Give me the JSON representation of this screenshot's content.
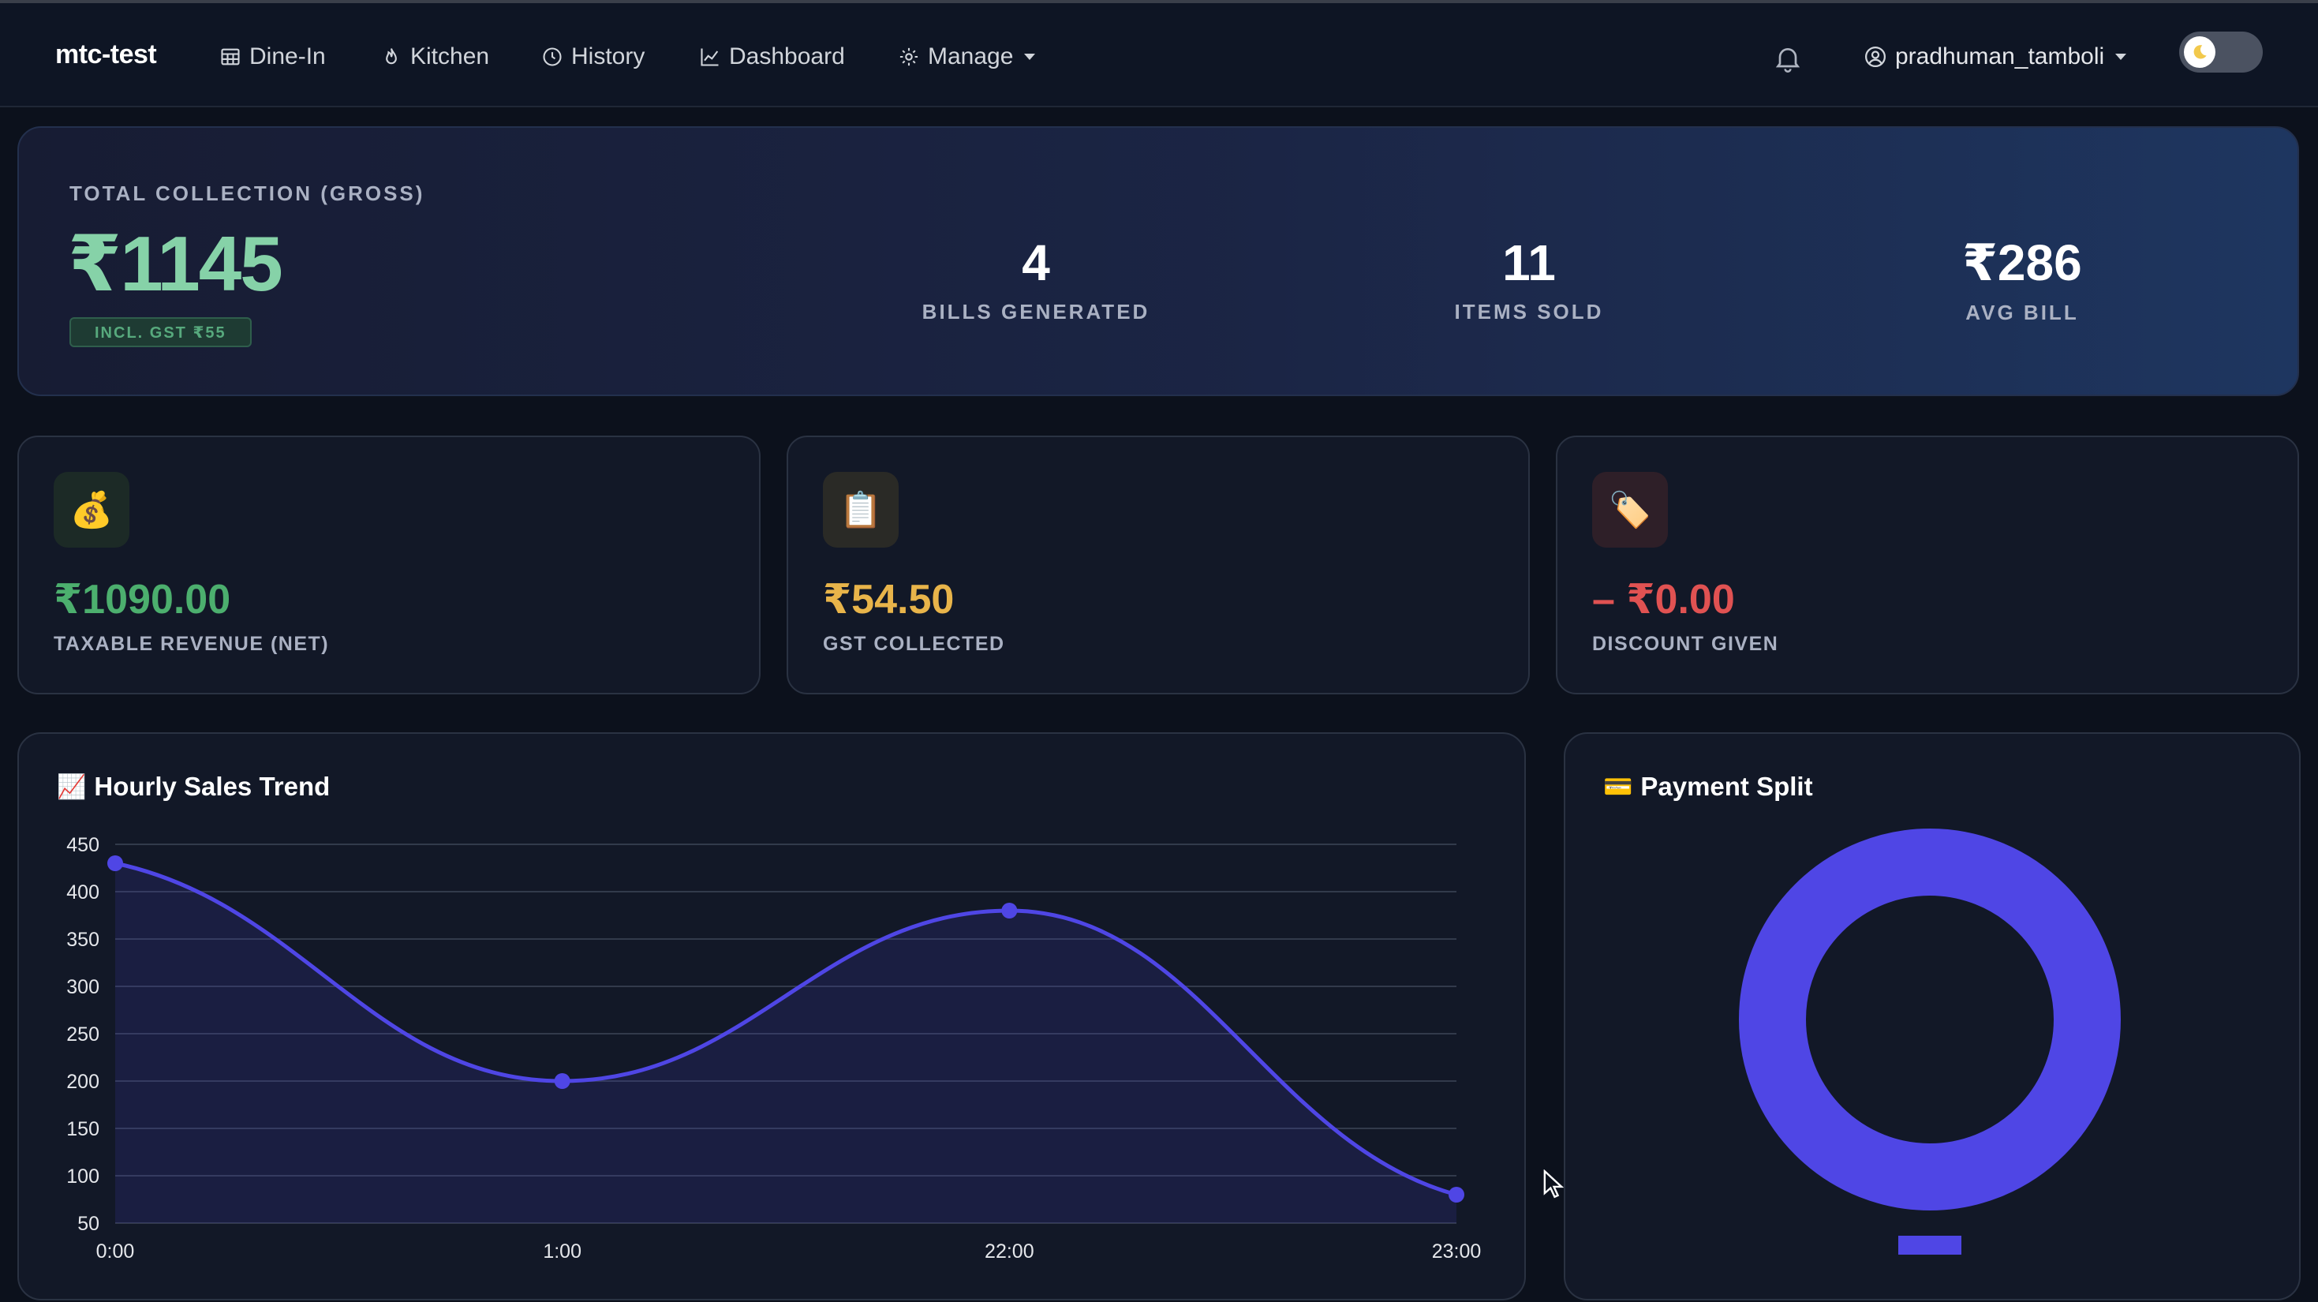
{
  "navbar": {
    "brand": "mtc-test",
    "items": [
      {
        "label": "Dine-In",
        "icon": "table-icon"
      },
      {
        "label": "Kitchen",
        "icon": "fire-icon"
      },
      {
        "label": "History",
        "icon": "clock-icon"
      },
      {
        "label": "Dashboard",
        "icon": "chart-icon"
      },
      {
        "label": "Manage",
        "icon": "gear-icon",
        "dropdown": true
      }
    ],
    "username": "pradhuman_tamboli",
    "theme_toggle_icon": "moon-icon"
  },
  "hero": {
    "label": "TOTAL COLLECTION (GROSS)",
    "amount": "₹1145",
    "badge": "INCL. GST ₹55",
    "stats": [
      {
        "value": "4",
        "label": "BILLS GENERATED"
      },
      {
        "value": "11",
        "label": "ITEMS SOLD"
      },
      {
        "value": "₹286",
        "label": "AVG BILL"
      }
    ]
  },
  "cards": [
    {
      "icon": "money-bag-icon",
      "emoji": "💰",
      "value": "₹1090.00",
      "label": "TAXABLE REVENUE (NET)",
      "color": "#4caf6e",
      "icon_bg": "#1c2a26"
    },
    {
      "icon": "clipboard-icon",
      "emoji": "📋",
      "value": "₹54.50",
      "label": "GST COLLECTED",
      "color": "#e8b44a",
      "icon_bg": "#2a2a26"
    },
    {
      "icon": "tag-icon",
      "emoji": "🏷️",
      "value": "– ₹0.00",
      "label": "DISCOUNT GIVEN",
      "color": "#e05252",
      "icon_bg": "#2e1f28"
    }
  ],
  "panels": {
    "sales": {
      "emoji": "📈",
      "title": "Hourly Sales Trend"
    },
    "payment": {
      "emoji": "💳",
      "title": "Payment Split"
    }
  },
  "chart_data": [
    {
      "type": "area",
      "title": "Hourly Sales Trend",
      "categories": [
        "0:00",
        "1:00",
        "22:00",
        "23:00"
      ],
      "values": [
        430,
        200,
        380,
        80
      ],
      "ylim": [
        50,
        450
      ],
      "yticks": [
        450,
        400,
        350,
        300,
        250,
        200,
        150,
        100,
        50
      ],
      "grid": true,
      "color": "#4f46e5"
    },
    {
      "type": "pie",
      "title": "Payment Split",
      "variant": "doughnut",
      "values": [
        100
      ],
      "colors": [
        "#4f46e5"
      ]
    }
  ]
}
